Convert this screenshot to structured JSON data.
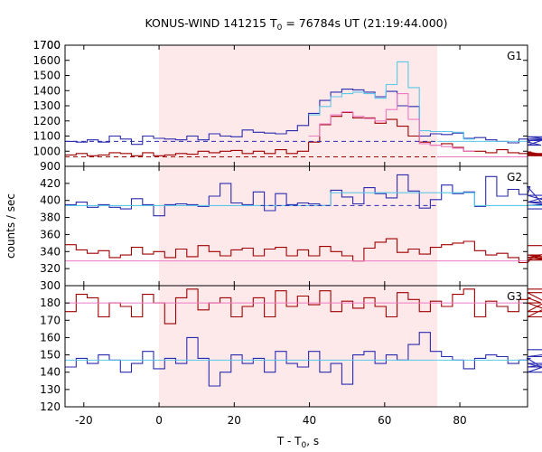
{
  "chart_data": {
    "type": "line",
    "title_main": "KONUS-WIND 141215 T",
    "title_sub": "0",
    "title_rest": " = 76784s UT (21:19:44.000)",
    "xlabel_main": "T - T",
    "xlabel_sub": "0",
    "xlabel_rest": ", s",
    "ylabel": "counts / sec",
    "xlim": [
      -25,
      98
    ],
    "xticks": [
      -20,
      0,
      20,
      40,
      60,
      80
    ],
    "xtick_labels": [
      "-20",
      "0",
      "20",
      "40",
      "60",
      "80"
    ],
    "shaded_interval": [
      0,
      74
    ],
    "colors": {
      "shade": "#fde8ea",
      "dark_blue": "#2b2bb0",
      "light_blue": "#5bc8e8",
      "dark_red": "#a00000",
      "pink": "#ee7ac4"
    },
    "panels": [
      {
        "label": "G1",
        "ylim": [
          900,
          1700
        ],
        "yticks": [
          900,
          1000,
          1100,
          1200,
          1300,
          1400,
          1500,
          1600,
          1700
        ],
        "ytick_labels": [
          "900",
          "1000",
          "1100",
          "1200",
          "1300",
          "1400",
          "1500",
          "1600",
          "1700"
        ],
        "bin_start": -25,
        "bin_width": 2.944,
        "series": [
          {
            "color": "#2b2bb0",
            "style": "step",
            "values": [
              1065,
              1060,
              1075,
              1060,
              1100,
              1080,
              1045,
              1100,
              1085,
              1080,
              1075,
              1100,
              1075,
              1115,
              1100,
              1095,
              1140,
              1125,
              1120,
              1115,
              1135,
              1170,
              1250,
              1335,
              1390,
              1410,
              1405,
              1390,
              1360,
              1395,
              1300,
              1295,
              1100,
              1115,
              1110,
              1120,
              1085,
              1090,
              1075,
              1065,
              1055,
              1080,
              1060,
              1040,
              1095,
              1070,
              1080,
              1070
            ]
          },
          {
            "color": "#5bc8e8",
            "style": "step",
            "values": [
              null,
              null,
              null,
              null,
              null,
              null,
              null,
              null,
              null,
              null,
              null,
              null,
              null,
              null,
              null,
              null,
              null,
              null,
              null,
              null,
              null,
              null,
              1240,
              1295,
              1360,
              1380,
              1390,
              1380,
              1350,
              1440,
              1590,
              1420,
              1135,
              1130,
              1130,
              1125,
              1080,
              null,
              null,
              null,
              null,
              null,
              null,
              null,
              null,
              null,
              null,
              null
            ]
          },
          {
            "color": "#a00000",
            "style": "step",
            "values": [
              975,
              985,
              970,
              975,
              990,
              985,
              970,
              990,
              970,
              975,
              985,
              980,
              1000,
              990,
              1000,
              1005,
              985,
              1000,
              985,
              1010,
              985,
              1000,
              1060,
              1175,
              1230,
              1255,
              1220,
              1220,
              1185,
              1210,
              1165,
              1100,
              1060,
              1040,
              1050,
              1025,
              1000,
              1000,
              990,
              1010,
              990,
              985,
              995,
              980,
              985,
              975,
              970,
              975
            ]
          },
          {
            "color": "#ee7ac4",
            "style": "step",
            "values": [
              null,
              null,
              null,
              null,
              null,
              null,
              null,
              null,
              null,
              null,
              null,
              null,
              null,
              null,
              null,
              null,
              null,
              null,
              null,
              null,
              null,
              null,
              1100,
              1180,
              1240,
              1260,
              1230,
              1215,
              1200,
              1275,
              1380,
              1210,
              1050,
              1040,
              1030,
              1020,
              1000,
              null,
              null,
              null,
              null,
              null,
              null,
              null,
              null,
              null,
              null,
              null
            ]
          },
          {
            "color": "#2b2bb0",
            "style": "dashed",
            "hline": 1065,
            "x_range": [
              -25,
              74
            ]
          },
          {
            "color": "#a00000",
            "style": "dashed",
            "hline": 963,
            "x_range": [
              -25,
              74
            ]
          },
          {
            "color": "#5bc8e8",
            "style": "solid",
            "hline": 1065,
            "x_range": [
              74,
              98
            ]
          },
          {
            "color": "#ee7ac4",
            "style": "solid",
            "hline": 963,
            "x_range": [
              74,
              98
            ]
          }
        ]
      },
      {
        "label": "G2",
        "ylim": [
          300,
          440
        ],
        "yticks": [
          300,
          320,
          340,
          360,
          380,
          400,
          420
        ],
        "ytick_labels": [
          "300",
          "320",
          "340",
          "360",
          "380",
          "400",
          "420"
        ],
        "bin_start": -25,
        "bin_width": 2.944,
        "series": [
          {
            "color": "#2b2bb0",
            "style": "step",
            "values": [
              395,
              398,
              392,
              395,
              392,
              390,
              402,
              395,
              382,
              395,
              396,
              395,
              393,
              405,
              420,
              397,
              395,
              410,
              388,
              408,
              395,
              397,
              396,
              394,
              412,
              404,
              396,
              415,
              408,
              403,
              430,
              411,
              391,
              401,
              418,
              408,
              410,
              393,
              428,
              405,
              413,
              407,
              416,
              398,
              406,
              394,
              398,
              390
            ]
          },
          {
            "color": "#5bc8e8",
            "style": "step",
            "values": [
              394,
              394,
              394,
              394,
              394,
              394,
              394,
              394,
              394,
              394,
              394,
              394,
              394,
              394,
              394,
              394,
              394,
              394,
              394,
              394,
              394,
              394,
              394,
              394,
              409,
              409,
              409,
              409,
              409,
              409,
              409,
              409,
              409,
              409,
              409,
              409,
              409,
              394,
              394,
              394,
              394,
              394,
              394,
              394,
              394,
              394,
              394,
              394
            ]
          },
          {
            "color": "#a00000",
            "style": "step",
            "values": [
              348,
              342,
              338,
              341,
              333,
              336,
              345,
              337,
              340,
              333,
              343,
              334,
              347,
              340,
              335,
              342,
              344,
              335,
              343,
              345,
              335,
              342,
              335,
              346,
              340,
              335,
              329,
              344,
              351,
              355,
              339,
              343,
              337,
              345,
              348,
              350,
              352,
              341,
              336,
              338,
              333,
              327,
              330,
              336,
              333,
              330,
              333,
              347
            ]
          },
          {
            "color": "#ee7ac4",
            "style": "solid",
            "hline": 329,
            "x_range": [
              -25,
              98
            ]
          },
          {
            "color": "#2b2bb0",
            "style": "dashed",
            "hline": 394,
            "x_range": [
              27,
              74
            ]
          }
        ]
      },
      {
        "label": "G3",
        "ylim": [
          120,
          190
        ],
        "yticks": [
          120,
          130,
          140,
          150,
          160,
          170,
          180
        ],
        "ytick_labels": [
          "120",
          "130",
          "140",
          "150",
          "160",
          "170",
          "180"
        ],
        "bin_start": -25,
        "bin_width": 2.944,
        "series": [
          {
            "color": "#a00000",
            "style": "step",
            "values": [
              175,
              185,
              183,
              172,
              180,
              178,
              172,
              185,
              180,
              168,
              183,
              188,
              176,
              180,
              183,
              172,
              178,
              183,
              172,
              187,
              178,
              184,
              179,
              187,
              175,
              181,
              177,
              183,
              178,
              172,
              186,
              182,
              175,
              181,
              178,
              185,
              188,
              172,
              181,
              178,
              175,
              182,
              183,
              180,
              175,
              186,
              172,
              188
            ]
          },
          {
            "color": "#ee7ac4",
            "style": "solid",
            "hline": 180,
            "x_range": [
              -25,
              98
            ]
          },
          {
            "color": "#2b2bb0",
            "style": "step",
            "values": [
              143,
              148,
              145,
              150,
              147,
              140,
              145,
              152,
              142,
              148,
              145,
              160,
              148,
              132,
              140,
              150,
              145,
              148,
              140,
              152,
              145,
              143,
              152,
              140,
              145,
              133,
              150,
              152,
              145,
              150,
              147,
              156,
              163,
              152,
              149,
              147,
              142,
              148,
              150,
              149,
              145,
              147,
              148,
              143,
              145,
              140,
              149,
              153
            ]
          },
          {
            "color": "#5bc8e8",
            "style": "solid",
            "hline": 147,
            "x_range": [
              -25,
              98
            ]
          }
        ]
      }
    ]
  }
}
